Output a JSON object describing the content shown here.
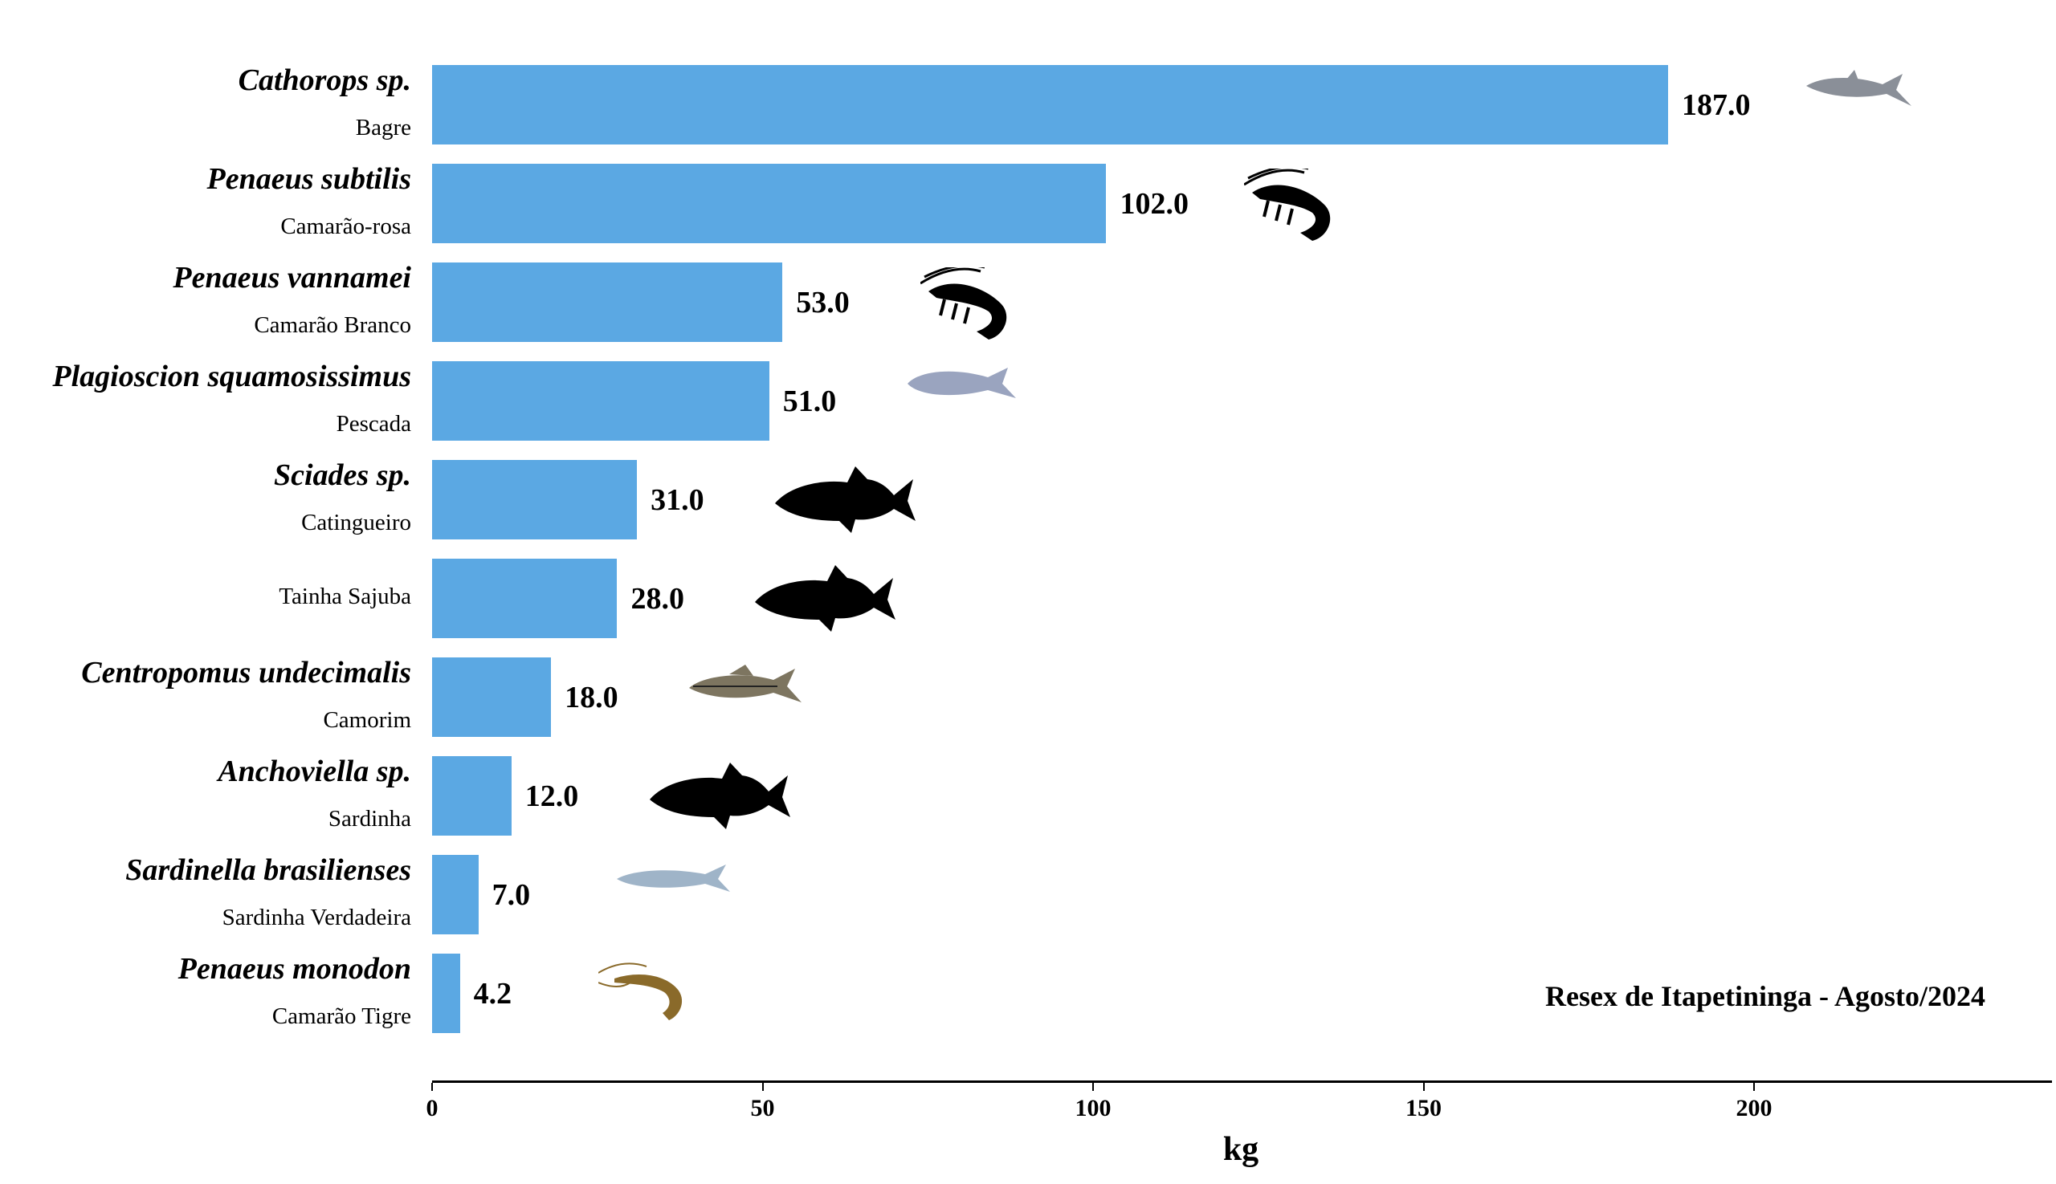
{
  "chart_data": {
    "type": "bar",
    "orientation": "horizontal",
    "title": "Resex de Itapetininga - Agosto/2024",
    "xlabel": "kg",
    "ylabel": "",
    "xlim": [
      0,
      245
    ],
    "xticks": [
      "0",
      "50",
      "100",
      "150",
      "200"
    ],
    "grid": false,
    "bar_color": "#5BA8E3",
    "categories": [
      {
        "scientific": "Cathorops sp.",
        "common": "Bagre",
        "icon": "catfish-icon",
        "icon_color": "#8a8f98"
      },
      {
        "scientific": "Penaeus subtilis",
        "common": "Camarão-rosa",
        "icon": "shrimp-icon",
        "icon_color": "#000000"
      },
      {
        "scientific": "Penaeus vannamei",
        "common": "Camarão Branco",
        "icon": "shrimp-icon",
        "icon_color": "#000000"
      },
      {
        "scientific": "Plagioscion squamosissimus",
        "common": "Pescada",
        "icon": "fish-icon",
        "icon_color": "#9aa4bf"
      },
      {
        "scientific": "Sciades sp.",
        "common": "Catingueiro",
        "icon": "fish-silhouette-icon",
        "icon_color": "#000000"
      },
      {
        "scientific": "",
        "common": "Tainha Sajuba",
        "icon": "fish-silhouette-icon",
        "icon_color": "#000000"
      },
      {
        "scientific": "Centropomus undecimalis",
        "common": "Camorim",
        "icon": "snook-icon",
        "icon_color": "#7d7560"
      },
      {
        "scientific": "Anchoviella sp.",
        "common": "Sardinha",
        "icon": "fish-silhouette-icon",
        "icon_color": "#000000"
      },
      {
        "scientific": "Sardinella brasilienses",
        "common": "Sardinha Verdadeira",
        "icon": "sardine-icon",
        "icon_color": "#9fb4c8"
      },
      {
        "scientific": "Penaeus monodon",
        "common": "Camarão Tigre",
        "icon": "tiger-shrimp-icon",
        "icon_color": "#8a6a2a"
      }
    ],
    "values": [
      187.0,
      102.0,
      53.0,
      51.0,
      31.0,
      28.0,
      18.0,
      12.0,
      7.0,
      4.2
    ],
    "value_labels": [
      "187.0",
      "102.0",
      "53.0",
      "51.0",
      "31.0",
      "28.0",
      "18.0",
      "12.0",
      "7.0",
      "4.2"
    ]
  }
}
